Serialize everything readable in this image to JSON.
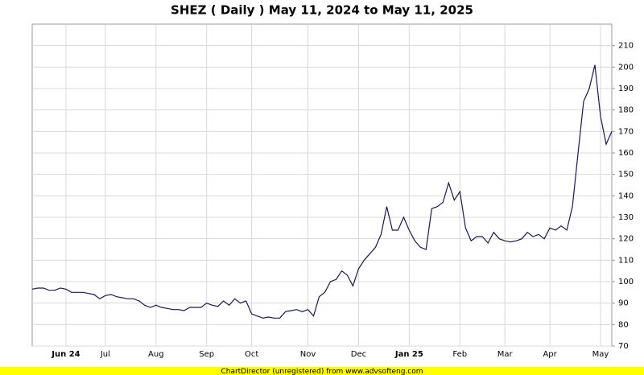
{
  "chart_data": {
    "type": "line",
    "title": "SHEZ ( Daily ) May 11, 2024 to May 11, 2025",
    "footer": "ChartDirector (unregistered) from www.advsofteng.com",
    "categories": [
      null,
      null,
      null,
      null,
      null,
      null,
      "Jun 24",
      null,
      null,
      null,
      null,
      null,
      null,
      "Jul",
      null,
      null,
      null,
      null,
      null,
      null,
      null,
      null,
      "Aug",
      null,
      null,
      null,
      null,
      null,
      null,
      null,
      null,
      "Sep",
      null,
      null,
      null,
      null,
      null,
      null,
      null,
      "Oct",
      null,
      null,
      null,
      null,
      null,
      null,
      null,
      null,
      null,
      "Nov",
      null,
      null,
      null,
      null,
      null,
      null,
      null,
      null,
      "Dec",
      null,
      null,
      null,
      null,
      null,
      null,
      null,
      null,
      "Jan 25",
      null,
      null,
      null,
      null,
      null,
      null,
      null,
      null,
      "Feb",
      null,
      null,
      null,
      null,
      null,
      null,
      null,
      "Mar",
      null,
      null,
      null,
      null,
      null,
      null,
      null,
      "Apr",
      null,
      null,
      null,
      null,
      null,
      null,
      null,
      null,
      "May",
      null,
      null
    ],
    "series": [
      {
        "name": "SHEZ",
        "color": "#1a1a4e",
        "values": [
          96.5,
          97,
          97,
          96,
          96,
          97,
          96.5,
          95,
          95,
          95,
          94.5,
          94,
          92,
          93.5,
          94,
          93,
          92.5,
          92,
          92,
          91,
          89,
          88,
          89,
          88,
          87.5,
          87,
          87,
          86.5,
          88,
          88,
          88,
          90,
          89,
          88.5,
          91,
          89,
          92,
          90,
          91,
          85,
          84,
          83,
          83.5,
          83,
          83,
          86,
          86.5,
          87,
          86,
          87,
          84,
          93,
          95,
          100,
          101,
          105,
          103,
          98,
          106,
          110,
          113,
          116,
          122,
          135,
          124,
          124,
          130,
          124,
          119,
          116,
          115,
          134,
          135,
          137,
          146,
          138,
          142,
          125,
          119,
          121,
          121,
          118,
          123,
          120,
          119,
          118.5,
          119,
          120,
          123,
          121,
          122,
          120,
          125,
          124,
          126,
          124,
          135,
          160,
          184,
          190,
          201,
          177,
          164,
          170
        ]
      }
    ],
    "ylim": [
      70,
      220
    ],
    "yticks": [
      70,
      80,
      90,
      100,
      110,
      120,
      130,
      140,
      150,
      160,
      170,
      180,
      190,
      200,
      210
    ],
    "grid": true
  }
}
